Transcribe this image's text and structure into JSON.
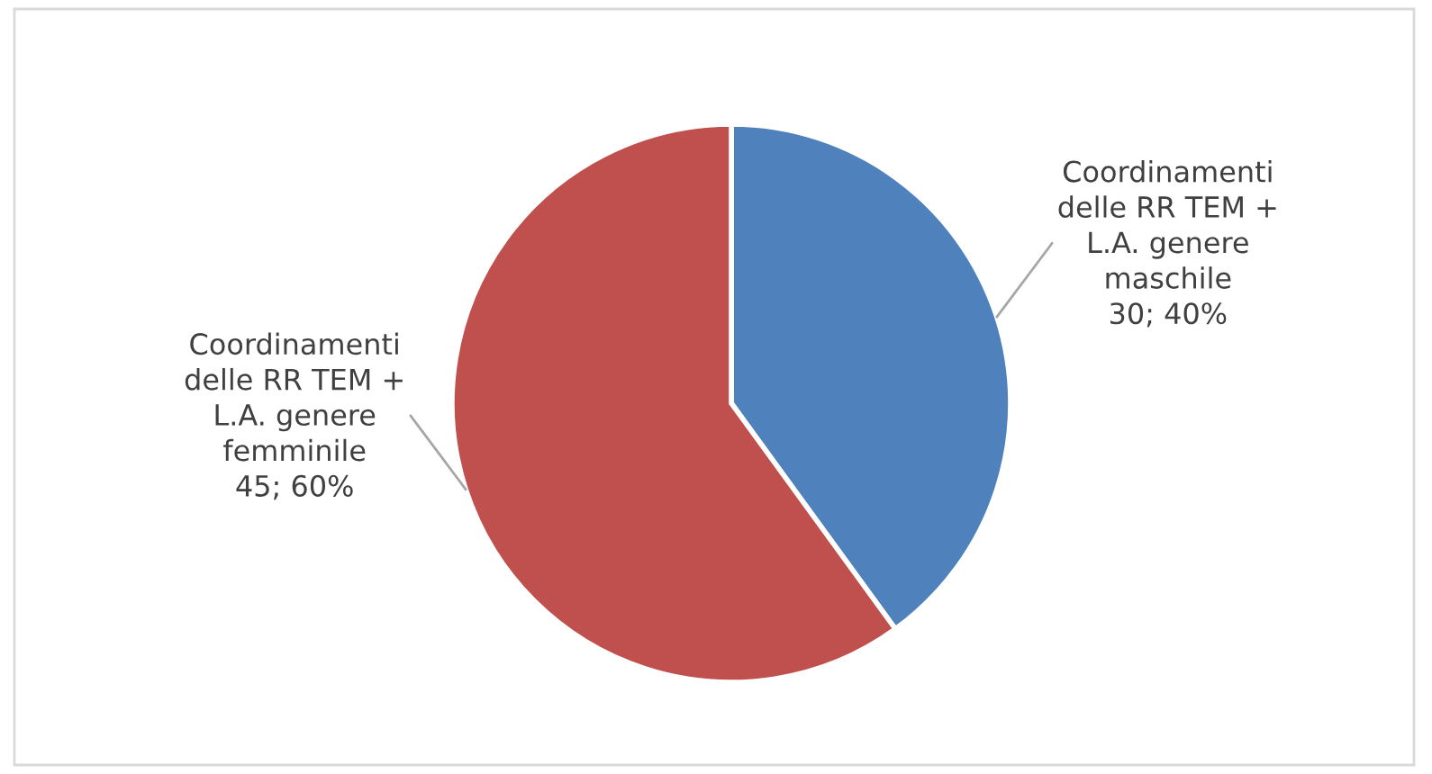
{
  "chart_data": {
    "type": "pie",
    "categories": [
      "Coordinamenti\ndelle RR TEM +\nL.A. genere\nmaschile",
      "Coordinamenti\ndelle RR TEM +\nL.A. genere\nfemminile"
    ],
    "values": [
      30,
      45
    ],
    "value_labels": [
      "30; 40%",
      "45; 60%"
    ],
    "colors": [
      "#4f81bd",
      "#c0504d"
    ],
    "legend": false
  }
}
